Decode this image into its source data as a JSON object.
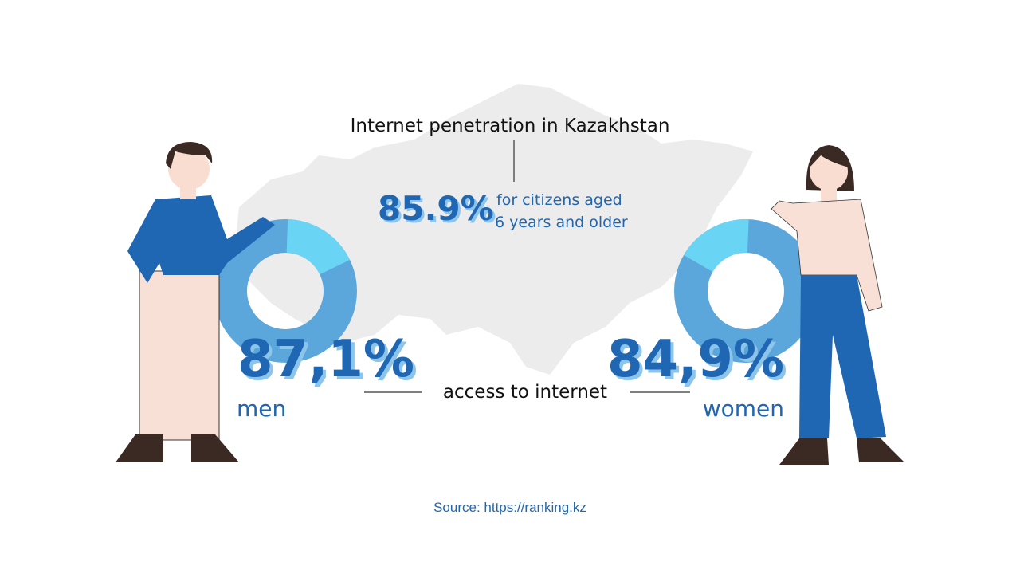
{
  "header": {
    "title": "Internet penetration in Kazakhstan"
  },
  "overall": {
    "value": "85.9%",
    "note_line1": "for citizens aged",
    "note_line2": "6 years and older"
  },
  "men": {
    "value": "87,1%",
    "label": "men"
  },
  "connector": "access to internet",
  "women": {
    "value": "84,9%",
    "label": "women"
  },
  "footer": {
    "source": "Source: https://ranking.kz"
  }
}
